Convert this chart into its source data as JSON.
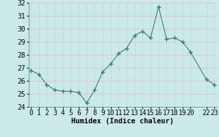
{
  "x": [
    0,
    1,
    2,
    3,
    4,
    5,
    6,
    7,
    8,
    9,
    10,
    11,
    12,
    13,
    14,
    15,
    16,
    17,
    18,
    19,
    20,
    22,
    23
  ],
  "y": [
    26.8,
    26.5,
    25.7,
    25.3,
    25.2,
    25.2,
    25.1,
    24.3,
    25.3,
    26.7,
    27.3,
    28.1,
    28.5,
    29.5,
    29.8,
    29.3,
    31.7,
    29.2,
    29.3,
    29.0,
    28.2,
    26.1,
    25.7
  ],
  "line_color": "#2e7d6e",
  "marker": "+",
  "marker_size": 4,
  "bg_color": "#cce9e9",
  "grid_color_v": "#c4d4d4",
  "grid_color_h": "#e8b8b8",
  "xlabel": "Humidex (Indice chaleur)",
  "ylim": [
    24,
    32
  ],
  "yticks": [
    24,
    25,
    26,
    27,
    28,
    29,
    30,
    31,
    32
  ],
  "xlabel_fontsize": 7.5,
  "tick_fontsize": 7
}
